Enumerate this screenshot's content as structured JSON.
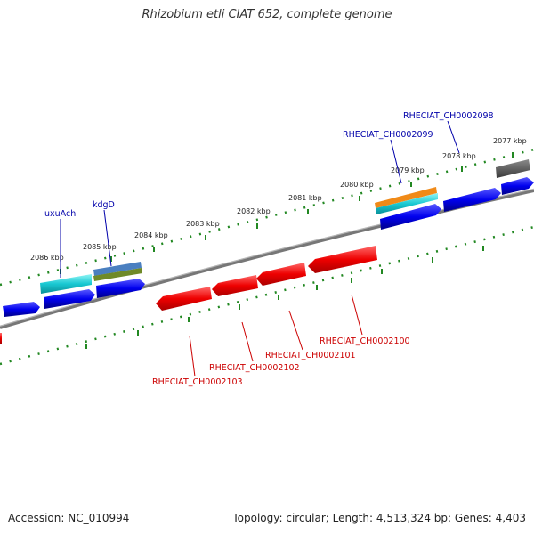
{
  "title": "Rhizobium etli CIAT 652, complete genome",
  "footer": {
    "accession": "Accession: NC_010994",
    "summary": "Topology: circular; Length: 4,513,324 bp; Genes: 4,403"
  },
  "colors": {
    "forward_gene": "#0000ee",
    "reverse_gene": "#ee0000",
    "forward_label": "#0000aa",
    "reverse_label": "#cc0000",
    "backbone": "#808080",
    "tick": "#228822",
    "gray_feature": "#555555"
  },
  "scale_labels": [
    "2086 kbp",
    "2085 kbp",
    "2084 kbp",
    "2083 kbp",
    "2082 kbp",
    "2081 kbp",
    "2080 kbp",
    "2079 kbp",
    "2078 kbp",
    "2077 kbp"
  ],
  "gene_labels": {
    "uxuAch": "uxuAch",
    "kdgD": "kdgD",
    "rheciat_2098": "RHECIAT_CH0002098",
    "rheciat_2099": "RHECIAT_CH0002099",
    "rheciat_2100": "RHECIAT_CH0002100",
    "rheciat_2101": "RHECIAT_CH0002101",
    "rheciat_2102": "RHECIAT_CH0002102",
    "rheciat_2103": "RHECIAT_CH0002103"
  }
}
